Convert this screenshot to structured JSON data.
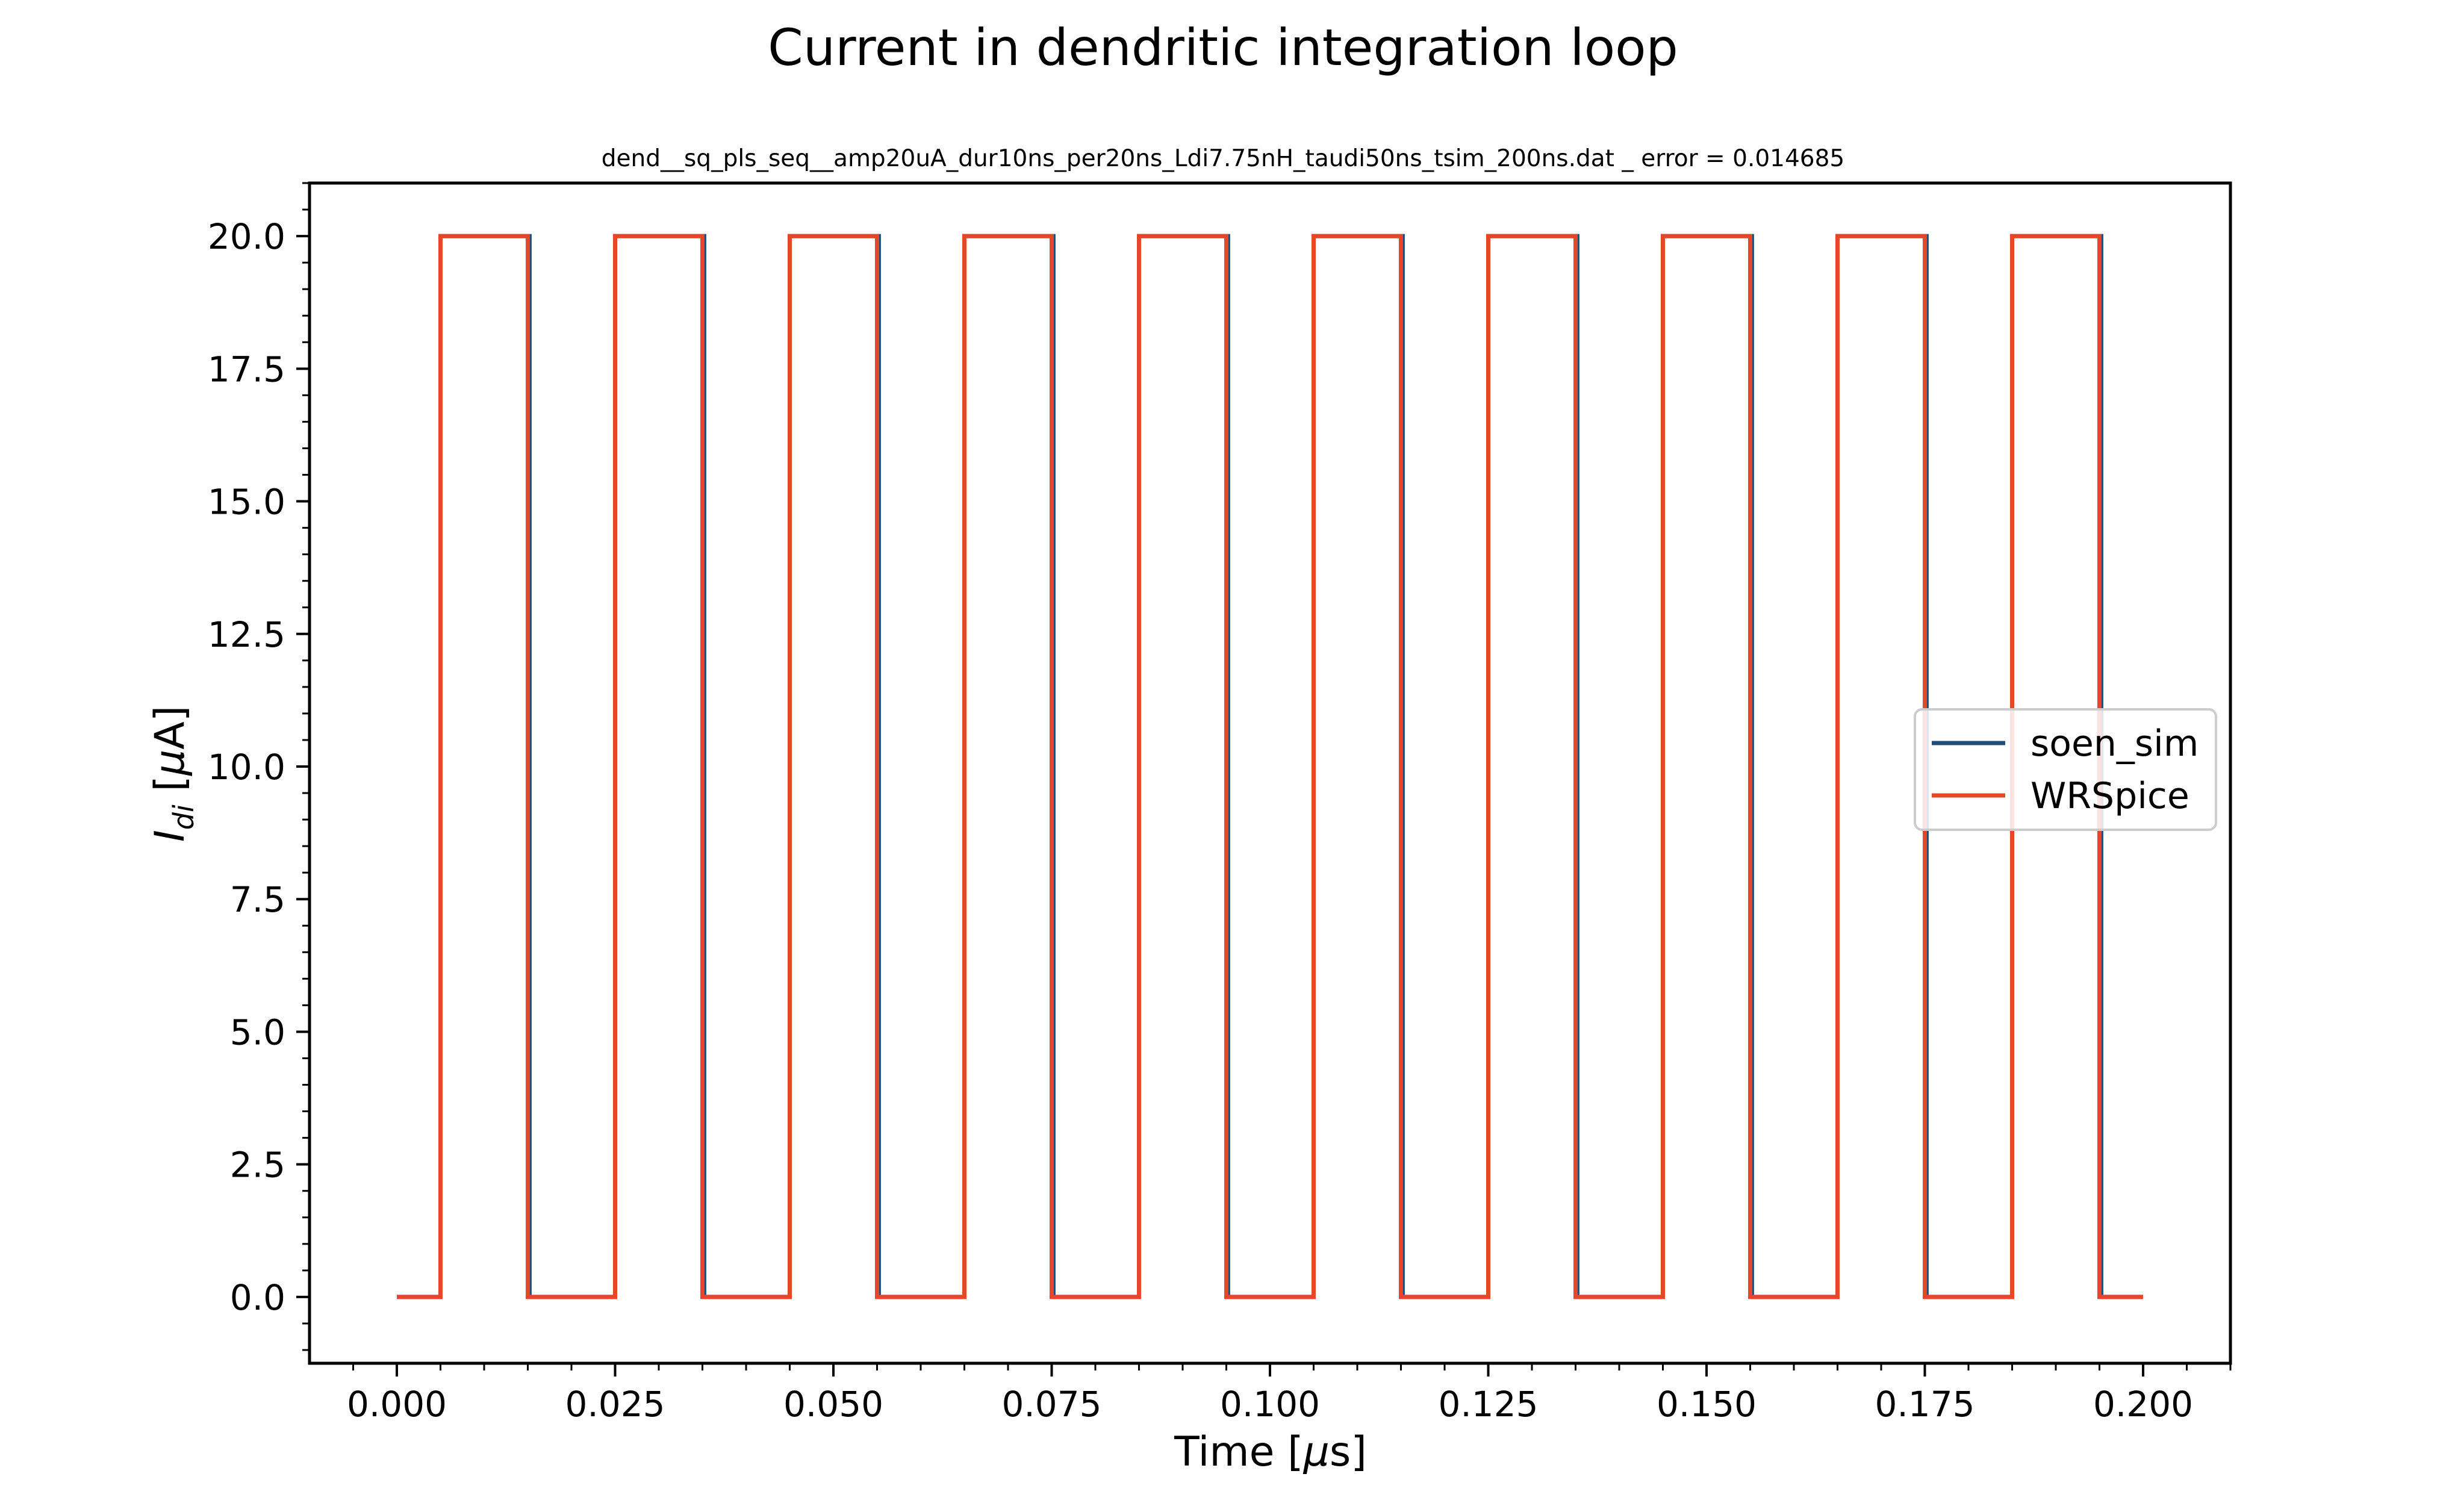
{
  "chart_data": {
    "type": "line",
    "title": "Current in dendritic integration loop",
    "subtitle": "dend__sq_pls_seq__amp20uA_dur10ns_per20ns_Ldi7.75nH_taudi50ns_tsim_200ns.dat _ error = 0.014685",
    "xlabel": "Time [",
    "xlabel_mu": "μ",
    "xlabel_unit": "s]",
    "ylabel_var": "I",
    "ylabel_sub": "di",
    "ylabel_unit_open": " [",
    "ylabel_mu": "μ",
    "ylabel_unit_close": "A]",
    "xlim": [
      -0.01,
      0.21
    ],
    "ylim": [
      -1.25,
      21.0
    ],
    "x_ticks": [
      0.0,
      0.025,
      0.05,
      0.075,
      0.1,
      0.125,
      0.15,
      0.175,
      0.2
    ],
    "x_tick_labels": [
      "0.000",
      "0.025",
      "0.050",
      "0.075",
      "0.100",
      "0.125",
      "0.150",
      "0.175",
      "0.200"
    ],
    "y_ticks": [
      0.0,
      2.5,
      5.0,
      7.5,
      10.0,
      12.5,
      15.0,
      17.5,
      20.0
    ],
    "y_tick_labels": [
      "0.0",
      "2.5",
      "5.0",
      "7.5",
      "10.0",
      "12.5",
      "15.0",
      "17.5",
      "20.0"
    ],
    "grid": false,
    "legend_position": "center-right",
    "series": [
      {
        "name": "soen_sim",
        "color": "#1f4e79",
        "x": [
          0.0,
          0.005,
          0.005,
          0.0152,
          0.0152,
          0.025,
          0.025,
          0.0352,
          0.0352,
          0.045,
          0.045,
          0.0552,
          0.0552,
          0.065,
          0.065,
          0.0752,
          0.0752,
          0.085,
          0.085,
          0.0952,
          0.0952,
          0.105,
          0.105,
          0.1152,
          0.1152,
          0.125,
          0.125,
          0.1352,
          0.1352,
          0.145,
          0.145,
          0.1552,
          0.1552,
          0.165,
          0.165,
          0.1752,
          0.1752,
          0.185,
          0.185,
          0.1952,
          0.1952,
          0.2
        ],
        "y": [
          0,
          0,
          20,
          20,
          0,
          0,
          20,
          20,
          0,
          0,
          20,
          20,
          0,
          0,
          20,
          20,
          0,
          0,
          20,
          20,
          0,
          0,
          20,
          20,
          0,
          0,
          20,
          20,
          0,
          0,
          20,
          20,
          0,
          0,
          20,
          20,
          0,
          0,
          20,
          20,
          0,
          0
        ]
      },
      {
        "name": "WRSpice",
        "color": "#e4472a",
        "x": [
          0.0,
          0.005,
          0.005,
          0.015,
          0.015,
          0.025,
          0.025,
          0.035,
          0.035,
          0.045,
          0.045,
          0.055,
          0.055,
          0.065,
          0.065,
          0.075,
          0.075,
          0.085,
          0.085,
          0.095,
          0.095,
          0.105,
          0.105,
          0.115,
          0.115,
          0.125,
          0.125,
          0.135,
          0.135,
          0.145,
          0.145,
          0.155,
          0.155,
          0.165,
          0.165,
          0.175,
          0.175,
          0.185,
          0.185,
          0.195,
          0.195,
          0.2
        ],
        "y": [
          0,
          0,
          20,
          20,
          0,
          0,
          20,
          20,
          0,
          0,
          20,
          20,
          0,
          0,
          20,
          20,
          0,
          0,
          20,
          20,
          0,
          0,
          20,
          20,
          0,
          0,
          20,
          20,
          0,
          0,
          20,
          20,
          0,
          0,
          20,
          20,
          0,
          0,
          20,
          20,
          0,
          0
        ]
      }
    ]
  }
}
